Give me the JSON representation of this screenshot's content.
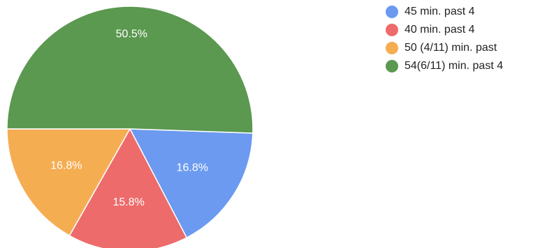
{
  "chart_data": {
    "type": "pie",
    "title": "",
    "slices": [
      {
        "label": "45 min. past 4",
        "value": 16.8,
        "display": "16.8%",
        "color": "#6b9af0"
      },
      {
        "label": "40 min. past 4",
        "value": 15.8,
        "display": "15.8%",
        "color": "#ed6b6b"
      },
      {
        "label": "50 (4/11) min. past",
        "value": 16.8,
        "display": "16.8%",
        "color": "#f5ad52"
      },
      {
        "label": "54(6/11) min. past 4",
        "value": 50.5,
        "display": "50.5%",
        "color": "#5b9850"
      }
    ],
    "legend_position": "right"
  }
}
